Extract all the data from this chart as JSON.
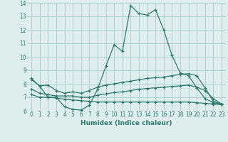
{
  "xlabel": "Humidex (Indice chaleur)",
  "x_values": [
    0,
    1,
    2,
    3,
    4,
    5,
    6,
    7,
    8,
    9,
    10,
    11,
    12,
    13,
    14,
    15,
    16,
    17,
    18,
    19,
    20,
    21,
    22,
    23
  ],
  "line1": [
    8.4,
    7.8,
    7.0,
    7.0,
    6.3,
    6.1,
    6.05,
    6.4,
    7.6,
    9.3,
    10.9,
    10.4,
    13.8,
    13.2,
    13.1,
    13.5,
    12.0,
    10.1,
    8.8,
    8.6,
    7.7,
    6.9,
    6.6,
    6.5
  ],
  "line2": [
    8.3,
    7.85,
    7.9,
    7.5,
    7.3,
    7.4,
    7.3,
    7.5,
    7.75,
    7.9,
    8.0,
    8.1,
    8.2,
    8.3,
    8.4,
    8.45,
    8.5,
    8.6,
    8.7,
    8.75,
    8.6,
    7.7,
    6.7,
    6.5
  ],
  "line3": [
    7.6,
    7.3,
    7.2,
    7.1,
    7.1,
    7.1,
    7.0,
    7.0,
    7.15,
    7.25,
    7.35,
    7.4,
    7.5,
    7.6,
    7.65,
    7.7,
    7.75,
    7.8,
    7.85,
    7.9,
    7.75,
    7.5,
    6.9,
    6.5
  ],
  "line4": [
    7.2,
    7.0,
    7.0,
    6.95,
    6.85,
    6.8,
    6.75,
    6.7,
    6.65,
    6.65,
    6.65,
    6.65,
    6.65,
    6.65,
    6.65,
    6.65,
    6.65,
    6.65,
    6.65,
    6.65,
    6.6,
    6.55,
    6.5,
    6.45
  ],
  "line_color": "#2d7a6a",
  "bg_color": "#ddeeed",
  "grid_color": "#aaccc8",
  "ylim": [
    6,
    14
  ],
  "xlim": [
    -0.5,
    23.5
  ],
  "yticks": [
    6,
    7,
    8,
    9,
    10,
    11,
    12,
    13,
    14
  ],
  "xticks": [
    0,
    1,
    2,
    3,
    4,
    5,
    6,
    7,
    8,
    9,
    10,
    11,
    12,
    13,
    14,
    15,
    16,
    17,
    18,
    19,
    20,
    21,
    22,
    23
  ]
}
